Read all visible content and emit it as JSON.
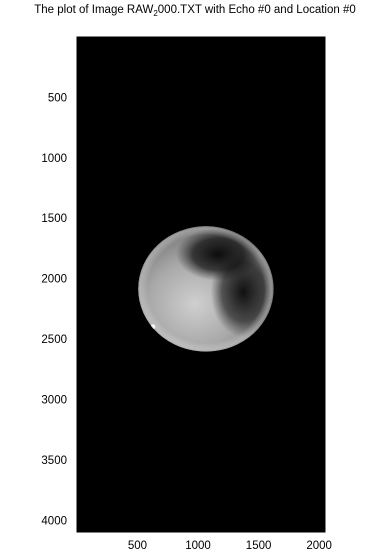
{
  "figure": {
    "title_prefix": "The plot of Image RAW",
    "title_subscript": "2",
    "title_suffix": "000.TXT with Echo #0 and Location #0"
  },
  "axes": {
    "y_ticks": [
      500,
      1000,
      1500,
      2000,
      2500,
      3000,
      3500,
      4000
    ],
    "x_ticks": [
      500,
      1000,
      1500,
      2000
    ],
    "x_range": [
      1,
      2048
    ],
    "y_range": [
      1,
      4096
    ],
    "y_direction": "down",
    "tick_marks_on_all_sides": true
  },
  "image": {
    "description_colors": {
      "background": "#000000",
      "disc_light": "#b8b8b8",
      "disc_dark": "#141414",
      "axis": "#000000"
    },
    "disc": {
      "center": [
        1065,
        2085
      ],
      "radius_x": 560,
      "radius_y": 520
    }
  }
}
